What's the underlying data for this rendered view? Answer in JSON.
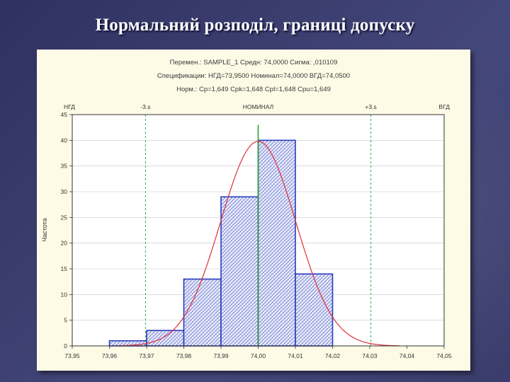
{
  "slide": {
    "title": "Нормальний розподіл, границі допуску"
  },
  "chart_data": {
    "type": "bar",
    "header_lines": [
      "Перемен.: SAMPLE_1  Средн: 74,0000      Сигма: ,010109",
      "Спецификации: НГД=73,9500 Номинал=74,0000 ВГД=74,0500",
      "Норм.: Cp=1,649 Cpk=1,648 Cpl=1,648 Cpu=1,649"
    ],
    "ylabel": "Частота",
    "x_ticks": [
      "73,95",
      "73,96",
      "73,97",
      "73,98",
      "73,99",
      "74,00",
      "74,01",
      "74,02",
      "74,03",
      "74,04",
      "74,05"
    ],
    "y_ticks": [
      "0",
      "5",
      "10",
      "15",
      "20",
      "25",
      "30",
      "35",
      "40",
      "45"
    ],
    "xlim": [
      73.95,
      74.05
    ],
    "ylim": [
      0,
      45
    ],
    "bins": [
      {
        "from": 73.96,
        "to": 73.97,
        "value": 1
      },
      {
        "from": 73.97,
        "to": 73.98,
        "value": 3
      },
      {
        "from": 73.98,
        "to": 73.99,
        "value": 13
      },
      {
        "from": 73.99,
        "to": 74.0,
        "value": 29
      },
      {
        "from": 74.0,
        "to": 74.01,
        "value": 40
      },
      {
        "from": 74.01,
        "to": 74.02,
        "value": 14
      }
    ],
    "normal_curve": {
      "mean": 74.0,
      "sigma": 0.010109,
      "peak": 39.8
    },
    "markers": [
      {
        "label": "НГД",
        "x": 73.95
      },
      {
        "label": "-3.s",
        "x": 73.9697
      },
      {
        "label": "НОМИНАЛ",
        "x": 74.0
      },
      {
        "label": "+3.s",
        "x": 74.0303
      },
      {
        "label": "ВГД",
        "x": 74.05
      }
    ],
    "colors": {
      "bar_edge": "#2b3dbd",
      "hatch": "#6a78d2",
      "curve": "#e0303a",
      "nominal_line": "#2f9e3a",
      "sigma_lines": "#3aa64a",
      "panel_bg": "#fdfbe6",
      "plot_bg": "#ffffff",
      "grid": "#c8c8c8"
    },
    "grid": true
  }
}
